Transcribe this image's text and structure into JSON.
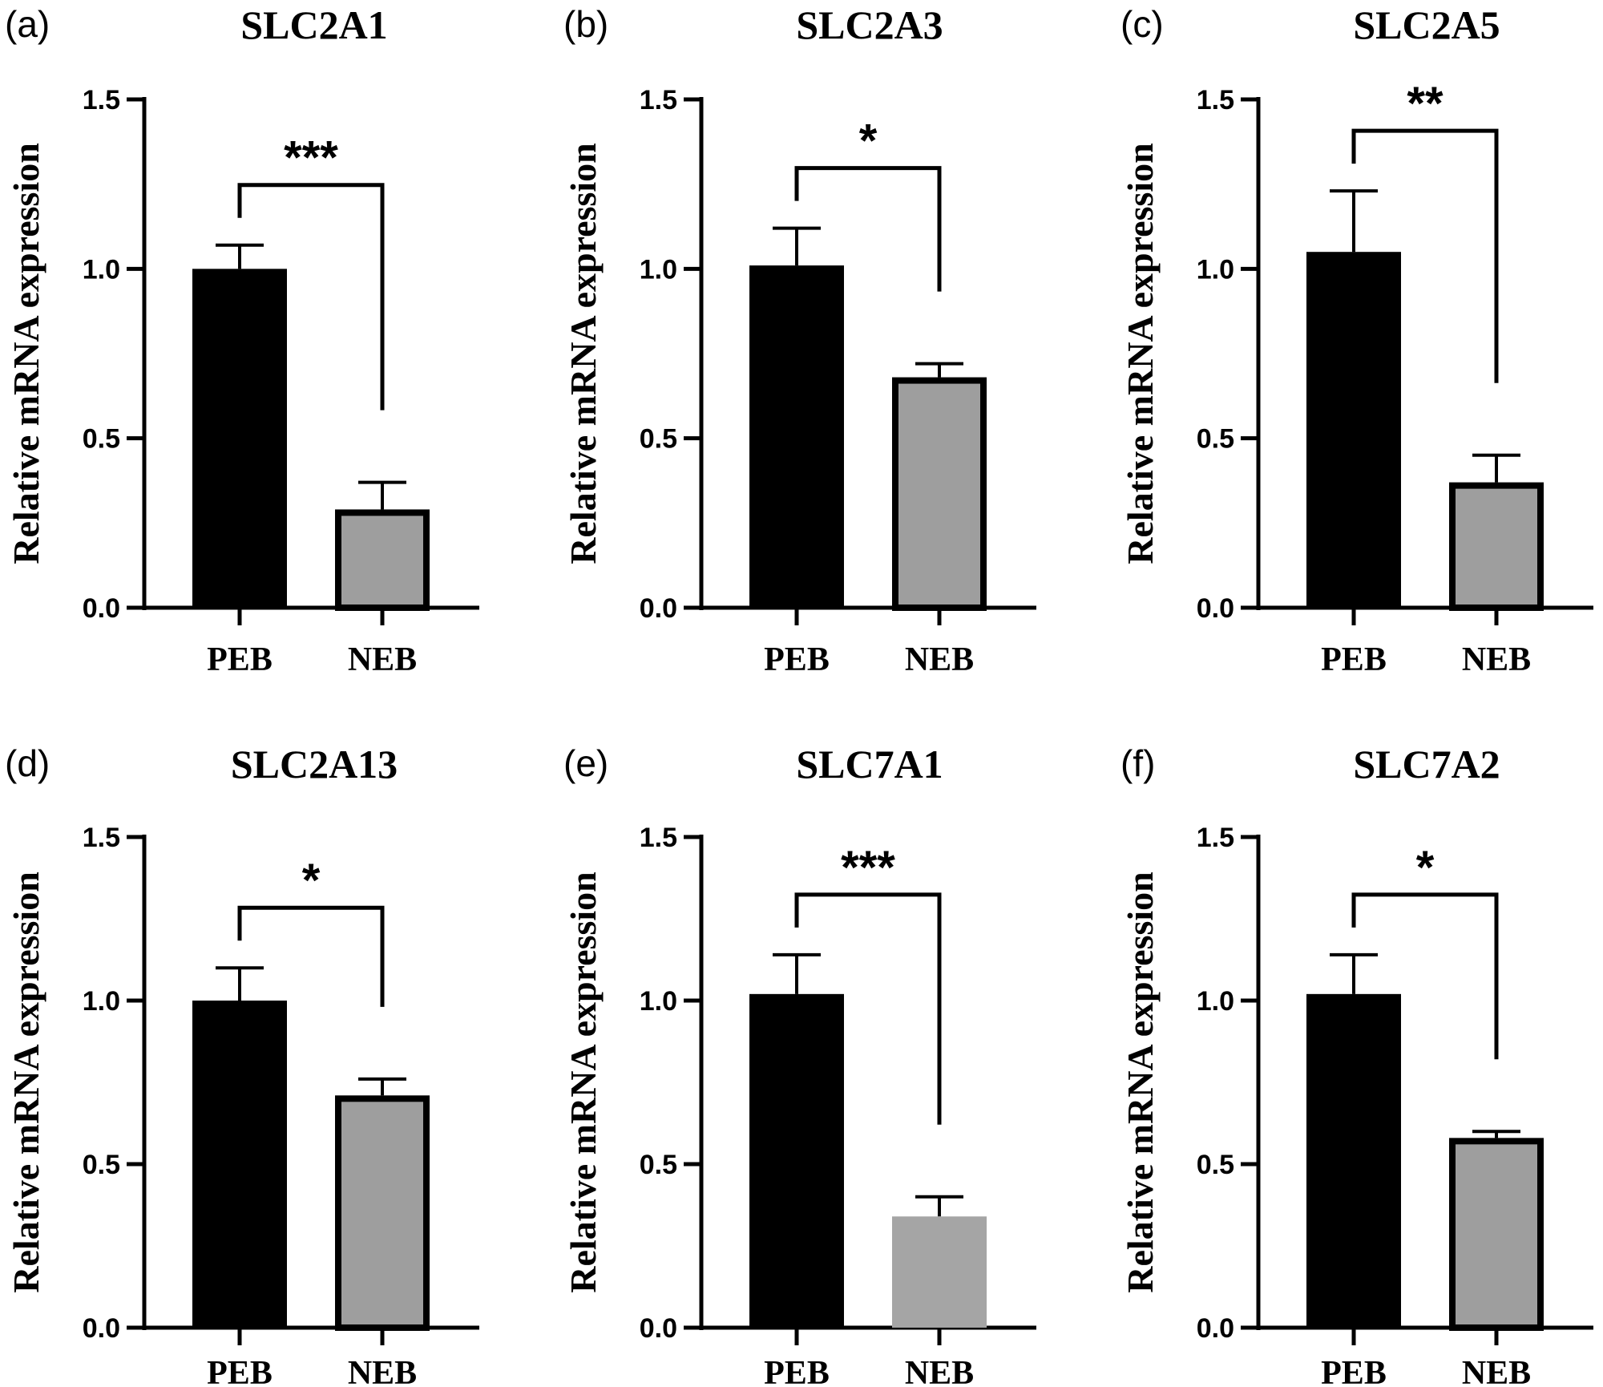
{
  "chart_data": [
    {
      "type": "bar",
      "panel_label": "(a)",
      "title": "SLC2A1",
      "ylabel": "Relative mRNA expression",
      "categories": [
        "PEB",
        "NEB"
      ],
      "values": [
        1.0,
        0.29
      ],
      "errors": [
        0.07,
        0.08
      ],
      "ylim": [
        0,
        1.5
      ],
      "yticks": [
        "0.0",
        "0.5",
        "1.0",
        "1.5"
      ],
      "significance": "***",
      "bar_colors": [
        "#000000",
        "#9e9e9e"
      ],
      "bar_outline": true
    },
    {
      "type": "bar",
      "panel_label": "(b)",
      "title": "SLC2A3",
      "ylabel": "Relative mRNA expression",
      "categories": [
        "PEB",
        "NEB"
      ],
      "values": [
        1.01,
        0.68
      ],
      "errors": [
        0.11,
        0.04
      ],
      "ylim": [
        0,
        1.5
      ],
      "yticks": [
        "0.0",
        "0.5",
        "1.0",
        "1.5"
      ],
      "significance": "*",
      "bar_colors": [
        "#000000",
        "#9e9e9e"
      ],
      "bar_outline": true
    },
    {
      "type": "bar",
      "panel_label": "(c)",
      "title": "SLC2A5",
      "ylabel": "Relative mRNA expression",
      "categories": [
        "PEB",
        "NEB"
      ],
      "values": [
        1.05,
        0.37
      ],
      "errors": [
        0.18,
        0.08
      ],
      "ylim": [
        0,
        1.5
      ],
      "yticks": [
        "0.0",
        "0.5",
        "1.0",
        "1.5"
      ],
      "significance": "**",
      "bar_colors": [
        "#000000",
        "#9e9e9e"
      ],
      "bar_outline": true
    },
    {
      "type": "bar",
      "panel_label": "(d)",
      "title": "SLC2A13",
      "ylabel": "Relative mRNA expression",
      "categories": [
        "PEB",
        "NEB"
      ],
      "values": [
        1.0,
        0.71
      ],
      "errors": [
        0.1,
        0.05
      ],
      "ylim": [
        0,
        1.5
      ],
      "yticks": [
        "0.0",
        "0.5",
        "1.0",
        "1.5"
      ],
      "significance": "*",
      "bar_colors": [
        "#000000",
        "#9e9e9e"
      ],
      "bar_outline": true
    },
    {
      "type": "bar",
      "panel_label": "(e)",
      "title": "SLC7A1",
      "ylabel": "Relative mRNA expression",
      "categories": [
        "PEB",
        "NEB"
      ],
      "values": [
        1.02,
        0.34
      ],
      "errors": [
        0.12,
        0.06
      ],
      "ylim": [
        0,
        1.5
      ],
      "yticks": [
        "0.0",
        "0.5",
        "1.0",
        "1.5"
      ],
      "significance": "***",
      "bar_colors": [
        "#000000",
        "#a5a5a5"
      ],
      "bar_outline": false
    },
    {
      "type": "bar",
      "panel_label": "(f)",
      "title": "SLC7A2",
      "ylabel": "Relative mRNA expression",
      "categories": [
        "PEB",
        "NEB"
      ],
      "values": [
        1.02,
        0.58
      ],
      "errors": [
        0.12,
        0.02
      ],
      "ylim": [
        0,
        1.5
      ],
      "yticks": [
        "0.0",
        "0.5",
        "1.0",
        "1.5"
      ],
      "significance": "*",
      "bar_colors": [
        "#000000",
        "#9e9e9e"
      ],
      "bar_outline": true
    }
  ]
}
